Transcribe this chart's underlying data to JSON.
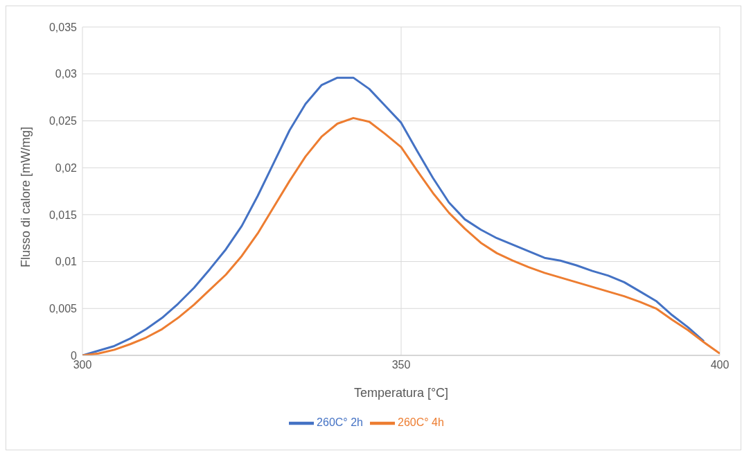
{
  "chart_data": {
    "type": "line",
    "xlabel": "Temperatura [°C]",
    "ylabel": "Flusso di calore [mW/mg]",
    "x": [
      300,
      302.5,
      305,
      307.5,
      310,
      312.5,
      315,
      317.5,
      320,
      322.5,
      325,
      327.5,
      330,
      332.5,
      335,
      337.5,
      340,
      342.5,
      345,
      347.5,
      350,
      352.5,
      355,
      357.5,
      360,
      362.5,
      365,
      367.5,
      370,
      372.5,
      375,
      377.5,
      380,
      382.5,
      385,
      387.5,
      390,
      392.5,
      395,
      397.5,
      400
    ],
    "series": [
      {
        "name": "260C° 2h",
        "color": "#4472c4",
        "values": [
          0,
          0.0005,
          0.001,
          0.0018,
          0.0028,
          0.004,
          0.0055,
          0.0072,
          0.0092,
          0.0113,
          0.0138,
          0.017,
          0.0205,
          0.024,
          0.0268,
          0.0288,
          0.0296,
          0.0296,
          0.0284,
          0.0266,
          0.0248,
          0.0218,
          0.0189,
          0.0163,
          0.0145,
          0.0134,
          0.0125,
          0.0118,
          0.0111,
          0.0104,
          0.0101,
          0.0096,
          0.009,
          0.0085,
          0.0078,
          0.0068,
          0.0058,
          0.0043,
          0.003,
          0.0015,
          null
        ]
      },
      {
        "name": "260C° 4h",
        "color": "#ed7d31",
        "values": [
          0,
          0.0002,
          0.0006,
          0.0012,
          0.0019,
          0.0028,
          0.004,
          0.0054,
          0.007,
          0.0086,
          0.0106,
          0.013,
          0.0158,
          0.0186,
          0.0212,
          0.0233,
          0.0247,
          0.0253,
          0.0249,
          0.0236,
          0.0222,
          0.0197,
          0.0173,
          0.0152,
          0.0135,
          0.012,
          0.0109,
          0.0101,
          0.0094,
          0.0088,
          0.0083,
          0.0078,
          0.0073,
          0.0068,
          0.0063,
          0.0057,
          0.005,
          0.0038,
          0.0027,
          0.0014,
          0.0002
        ]
      }
    ],
    "xlim": [
      300,
      400
    ],
    "xticks": [
      300,
      350,
      400
    ],
    "ylim": [
      0,
      0.035
    ],
    "yticks": [
      0,
      {
        "value": 0.005,
        "label": "0,005"
      },
      {
        "value": 0.01,
        "label": "0,01"
      },
      {
        "value": 0.015,
        "label": "0,015"
      },
      {
        "value": 0.02,
        "label": "0,02"
      },
      {
        "value": 0.025,
        "label": "0,025"
      },
      {
        "value": 0.03,
        "label": "0,03"
      },
      {
        "value": 0.035,
        "label": "0,035"
      }
    ],
    "grid": true,
    "legend": "bottom",
    "marker": "none",
    "line_style": "solid"
  }
}
